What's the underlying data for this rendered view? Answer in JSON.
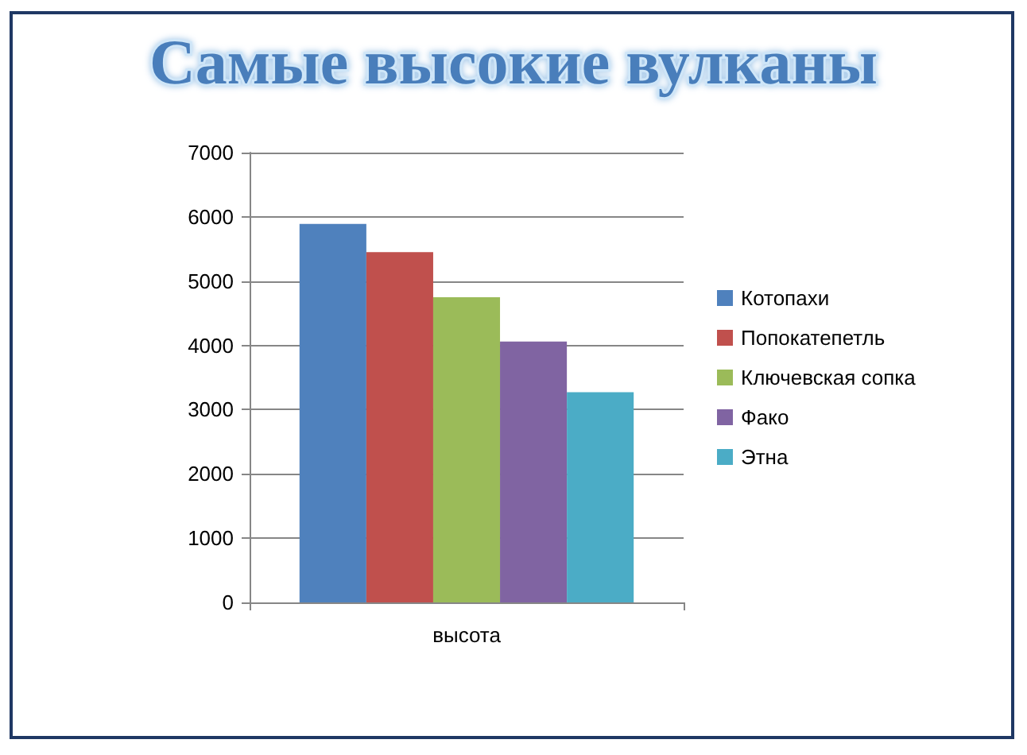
{
  "chart_data": {
    "type": "bar",
    "title": "Самые высокие вулканы",
    "categories": [
      "высота"
    ],
    "series": [
      {
        "name": "Котопахи",
        "color": "#4f81bd",
        "values": [
          5890
        ]
      },
      {
        "name": "Попокатепетль",
        "color": "#c0504d",
        "values": [
          5450
        ]
      },
      {
        "name": "Ключевская сопка",
        "color": "#9bbb59",
        "values": [
          4750
        ]
      },
      {
        "name": "Фако",
        "color": "#8064a2",
        "values": [
          4060
        ]
      },
      {
        "name": "Этна",
        "color": "#4bacc6",
        "values": [
          3270
        ]
      }
    ],
    "ylim": [
      0,
      7000
    ],
    "yticks": [
      0,
      1000,
      2000,
      3000,
      4000,
      5000,
      6000,
      7000
    ],
    "grid": "y",
    "legend": "right"
  }
}
